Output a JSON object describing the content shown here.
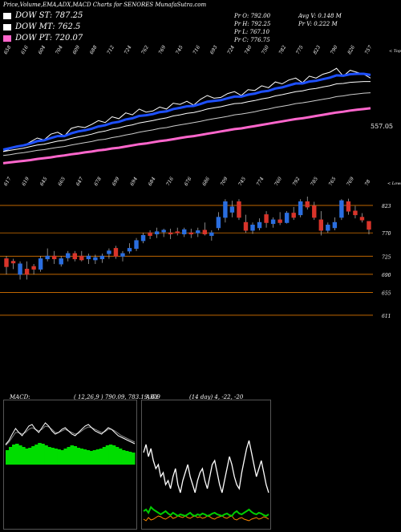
{
  "header": {
    "title": "Price,Volume,EMA,ADX,MACD Charts for SENORES MunafaSutra.com"
  },
  "legend": [
    {
      "label": "DOW ST: 787.25",
      "color": "#ffffff"
    },
    {
      "label": "DOW MT: 762.5",
      "color": "#ffffff"
    },
    {
      "label": "DOW PT: 720.07",
      "color": "#ff66cc"
    }
  ],
  "stats": {
    "pr_o": "Pr O: 792.00",
    "pr_h": "Pr H: 792.25",
    "pr_l": "Pr L: 767.10",
    "pr_c": "Pr C: 776.75",
    "avg_v": "Avg V: 0.148 M",
    "pr_v": "Pr V: 0.222 M"
  },
  "ema_chart": {
    "top_labels": [
      "658",
      "616",
      "604",
      "704",
      "609",
      "688",
      "712",
      "724",
      "762",
      "769",
      "745",
      "716",
      "693",
      "724",
      "740",
      "750",
      "782",
      "775",
      "823",
      "790",
      "826",
      "757"
    ],
    "bottom_labels": [
      "617",
      "619",
      "645",
      "665",
      "647",
      "678",
      "699",
      "694",
      "684",
      "716",
      "676",
      "686",
      "709",
      "745",
      "774",
      "760",
      "792",
      "785",
      "765",
      "769",
      "78"
    ],
    "right_top": "< Tope",
    "right_bottom": "< Lowes",
    "last_value": "557.05",
    "price": [
      690,
      697,
      702,
      705,
      715,
      725,
      720,
      735,
      740,
      730,
      750,
      755,
      752,
      760,
      770,
      765,
      780,
      775,
      790,
      785,
      800,
      792,
      795,
      805,
      800,
      815,
      812,
      820,
      810,
      825,
      835,
      828,
      830,
      840,
      845,
      835,
      850,
      848,
      860,
      855,
      870,
      865,
      875,
      880,
      868,
      885,
      880,
      890,
      895,
      905,
      885,
      900,
      895,
      890,
      880
    ],
    "ema1": [
      695,
      699,
      703,
      706,
      711,
      717,
      719,
      725,
      730,
      730,
      737,
      742,
      745,
      749,
      755,
      758,
      764,
      767,
      773,
      776,
      782,
      784,
      787,
      792,
      794,
      800,
      803,
      807,
      808,
      813,
      819,
      821,
      823,
      828,
      832,
      832,
      837,
      840,
      845,
      847,
      853,
      856,
      861,
      866,
      866,
      871,
      873,
      877,
      881,
      887,
      886,
      890,
      891,
      891,
      888
    ],
    "ema2": [
      690,
      693,
      696,
      699,
      703,
      707,
      709,
      713,
      717,
      719,
      724,
      728,
      731,
      735,
      740,
      743,
      748,
      751,
      756,
      759,
      764,
      767,
      770,
      774,
      777,
      782,
      785,
      789,
      791,
      795,
      800,
      803,
      806,
      810,
      814,
      815,
      819,
      822,
      826,
      829,
      834,
      837,
      841,
      845,
      847,
      851,
      853,
      857,
      860,
      865,
      866,
      869,
      870,
      871,
      871
    ],
    "ema3": [
      680,
      682,
      685,
      687,
      690,
      693,
      695,
      698,
      701,
      703,
      707,
      710,
      713,
      716,
      720,
      722,
      726,
      729,
      733,
      736,
      740,
      743,
      746,
      750,
      752,
      756,
      759,
      762,
      765,
      768,
      772,
      775,
      778,
      781,
      785,
      787,
      790,
      793,
      797,
      800,
      804,
      807,
      810,
      814,
      816,
      819,
      822,
      825,
      828,
      832,
      834,
      837,
      839,
      841,
      842
    ],
    "ema4": [
      660,
      662,
      664,
      666,
      668,
      671,
      673,
      675,
      678,
      680,
      683,
      685,
      688,
      690,
      693,
      695,
      698,
      700,
      703,
      706,
      709,
      711,
      714,
      717,
      719,
      722,
      725,
      728,
      730,
      733,
      736,
      739,
      742,
      745,
      748,
      750,
      753,
      756,
      759,
      762,
      765,
      768,
      771,
      774,
      776,
      779,
      782,
      785,
      788,
      791,
      793,
      796,
      798,
      800,
      802
    ]
  },
  "chart_data": {
    "type": "candlestick",
    "title": "",
    "ylim": [
      600,
      840
    ],
    "grid_levels": [
      823,
      770,
      725,
      690,
      655,
      611
    ],
    "candles": [
      {
        "o": 720,
        "h": 725,
        "l": 690,
        "c": 705
      },
      {
        "o": 715,
        "h": 720,
        "l": 700,
        "c": 712
      },
      {
        "o": 690,
        "h": 715,
        "l": 680,
        "c": 710
      },
      {
        "o": 700,
        "h": 715,
        "l": 680,
        "c": 690
      },
      {
        "o": 705,
        "h": 710,
        "l": 690,
        "c": 700
      },
      {
        "o": 700,
        "h": 725,
        "l": 695,
        "c": 720
      },
      {
        "o": 720,
        "h": 740,
        "l": 715,
        "c": 725
      },
      {
        "o": 725,
        "h": 735,
        "l": 710,
        "c": 720
      },
      {
        "o": 710,
        "h": 725,
        "l": 705,
        "c": 720
      },
      {
        "o": 722,
        "h": 735,
        "l": 715,
        "c": 730
      },
      {
        "o": 730,
        "h": 735,
        "l": 715,
        "c": 720
      },
      {
        "o": 725,
        "h": 735,
        "l": 715,
        "c": 718
      },
      {
        "o": 720,
        "h": 730,
        "l": 710,
        "c": 725
      },
      {
        "o": 718,
        "h": 728,
        "l": 710,
        "c": 722
      },
      {
        "o": 720,
        "h": 730,
        "l": 712,
        "c": 725
      },
      {
        "o": 730,
        "h": 740,
        "l": 720,
        "c": 735
      },
      {
        "o": 740,
        "h": 745,
        "l": 720,
        "c": 725
      },
      {
        "o": 725,
        "h": 735,
        "l": 715,
        "c": 730
      },
      {
        "o": 735,
        "h": 750,
        "l": 730,
        "c": 740
      },
      {
        "o": 740,
        "h": 760,
        "l": 735,
        "c": 755
      },
      {
        "o": 755,
        "h": 770,
        "l": 750,
        "c": 765
      },
      {
        "o": 770,
        "h": 775,
        "l": 758,
        "c": 765
      },
      {
        "o": 768,
        "h": 780,
        "l": 760,
        "c": 772
      },
      {
        "o": 772,
        "h": 778,
        "l": 762,
        "c": 775
      },
      {
        "o": 770,
        "h": 778,
        "l": 758,
        "c": 768
      },
      {
        "o": 772,
        "h": 780,
        "l": 765,
        "c": 770
      },
      {
        "o": 768,
        "h": 780,
        "l": 762,
        "c": 776
      },
      {
        "o": 770,
        "h": 778,
        "l": 760,
        "c": 768
      },
      {
        "o": 770,
        "h": 780,
        "l": 762,
        "c": 774
      },
      {
        "o": 775,
        "h": 790,
        "l": 765,
        "c": 768
      },
      {
        "o": 765,
        "h": 775,
        "l": 755,
        "c": 770
      },
      {
        "o": 780,
        "h": 810,
        "l": 775,
        "c": 800
      },
      {
        "o": 800,
        "h": 835,
        "l": 790,
        "c": 830
      },
      {
        "o": 810,
        "h": 832,
        "l": 800,
        "c": 820
      },
      {
        "o": 830,
        "h": 835,
        "l": 795,
        "c": 800
      },
      {
        "o": 790,
        "h": 805,
        "l": 770,
        "c": 775
      },
      {
        "o": 775,
        "h": 790,
        "l": 768,
        "c": 785
      },
      {
        "o": 780,
        "h": 798,
        "l": 775,
        "c": 790
      },
      {
        "o": 805,
        "h": 812,
        "l": 780,
        "c": 790
      },
      {
        "o": 788,
        "h": 800,
        "l": 780,
        "c": 795
      },
      {
        "o": 795,
        "h": 810,
        "l": 785,
        "c": 790
      },
      {
        "o": 790,
        "h": 812,
        "l": 788,
        "c": 808
      },
      {
        "o": 808,
        "h": 820,
        "l": 795,
        "c": 800
      },
      {
        "o": 805,
        "h": 835,
        "l": 800,
        "c": 830
      },
      {
        "o": 830,
        "h": 840,
        "l": 815,
        "c": 820
      },
      {
        "o": 822,
        "h": 830,
        "l": 795,
        "c": 800
      },
      {
        "o": 795,
        "h": 812,
        "l": 765,
        "c": 775
      },
      {
        "o": 775,
        "h": 790,
        "l": 770,
        "c": 785
      },
      {
        "o": 780,
        "h": 800,
        "l": 775,
        "c": 790
      },
      {
        "o": 800,
        "h": 835,
        "l": 795,
        "c": 832
      },
      {
        "o": 830,
        "h": 836,
        "l": 805,
        "c": 812
      },
      {
        "o": 812,
        "h": 822,
        "l": 798,
        "c": 805
      },
      {
        "o": 800,
        "h": 808,
        "l": 790,
        "c": 795
      },
      {
        "o": 792,
        "h": 792,
        "l": 767,
        "c": 777
      }
    ]
  },
  "macd": {
    "label": "MACD:",
    "values": "( 12,26,9 ) 790.09, 783.19, 6.9",
    "histogram": [
      18,
      22,
      25,
      26,
      24,
      22,
      20,
      21,
      23,
      25,
      27,
      26,
      24,
      22,
      21,
      20,
      19,
      18,
      20,
      22,
      24,
      23,
      21,
      20,
      19,
      18,
      17,
      18,
      19,
      20,
      22,
      24,
      25,
      24,
      22,
      20,
      18,
      17,
      16,
      15
    ],
    "line1": [
      25,
      30,
      38,
      45,
      40,
      36,
      42,
      48,
      50,
      44,
      40,
      46,
      52,
      48,
      42,
      38,
      40,
      44,
      46,
      42,
      38,
      36,
      40,
      44,
      48,
      50,
      46,
      42,
      40,
      38,
      42,
      46,
      44,
      40,
      36,
      34,
      32,
      30,
      28,
      26
    ],
    "line2": [
      24,
      28,
      34,
      40,
      40,
      38,
      40,
      44,
      46,
      44,
      42,
      44,
      48,
      47,
      44,
      40,
      40,
      42,
      44,
      42,
      40,
      38,
      39,
      42,
      45,
      47,
      46,
      44,
      42,
      40,
      41,
      44,
      44,
      42,
      39,
      36,
      34,
      32,
      30,
      28
    ]
  },
  "adx": {
    "label": "ADX",
    "values": "(14 day) 4, -22, -20",
    "adx_line": [
      110,
      120,
      105,
      115,
      100,
      90,
      95,
      80,
      85,
      70,
      75,
      65,
      80,
      90,
      70,
      60,
      75,
      85,
      95,
      80,
      70,
      60,
      75,
      85,
      90,
      75,
      65,
      80,
      95,
      100,
      85,
      70,
      60,
      75,
      90,
      105,
      95,
      80,
      70,
      65,
      85,
      100,
      115,
      125,
      110,
      95,
      80,
      90,
      100,
      85,
      70,
      60
    ],
    "plus_di": [
      20,
      22,
      18,
      25,
      22,
      20,
      18,
      16,
      18,
      20,
      17,
      15,
      18,
      16,
      14,
      16,
      15,
      14,
      16,
      18,
      15,
      14,
      16,
      15,
      17,
      16,
      14,
      15,
      17,
      18,
      16,
      15,
      14,
      16,
      17,
      15,
      14,
      18,
      20,
      17,
      16,
      18,
      20,
      22,
      19,
      17,
      16,
      18,
      17,
      15,
      14,
      16
    ],
    "minus_di": [
      10,
      8,
      12,
      9,
      10,
      12,
      14,
      13,
      11,
      10,
      12,
      14,
      11,
      12,
      14,
      13,
      12,
      14,
      12,
      11,
      13,
      14,
      12,
      13,
      11,
      12,
      14,
      13,
      11,
      10,
      12,
      13,
      14,
      12,
      11,
      13,
      14,
      10,
      9,
      11,
      12,
      10,
      9,
      8,
      10,
      11,
      12,
      10,
      11,
      13,
      12,
      10
    ]
  },
  "colors": {
    "up": "#2a6ee0",
    "down": "#d8342a",
    "wick": "#bbbbbb",
    "grid": "#ff8800",
    "ema_blue": "#1e50ff",
    "ema_pink": "#ff66cc",
    "macd_green": "#00dd00",
    "adx_green": "#00cc00",
    "adx_orange": "#ff8800"
  }
}
